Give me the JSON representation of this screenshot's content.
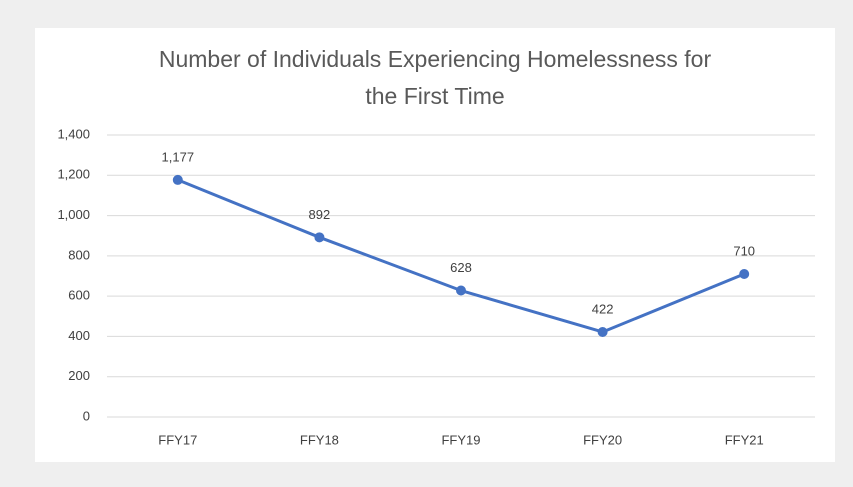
{
  "chart_data": {
    "type": "line",
    "title": [
      "Number of Individuals Experiencing Homelessness for",
      "the First Time"
    ],
    "categories": [
      "FFY17",
      "FFY18",
      "FFY19",
      "FFY20",
      "FFY21"
    ],
    "series": [
      {
        "color": "#4472c4",
        "values": [
          1177,
          892,
          628,
          422,
          710
        ],
        "value_labels": [
          "1,177",
          "892",
          "628",
          "422",
          "710"
        ]
      }
    ],
    "ylim": [
      0,
      1400
    ],
    "yticks": [
      0,
      200,
      400,
      600,
      800,
      {
        "value": 1000,
        "label": "1,000"
      },
      {
        "value": 1200,
        "label": "1,200"
      },
      {
        "value": 1400,
        "label": "1,400"
      }
    ],
    "grid": true
  }
}
